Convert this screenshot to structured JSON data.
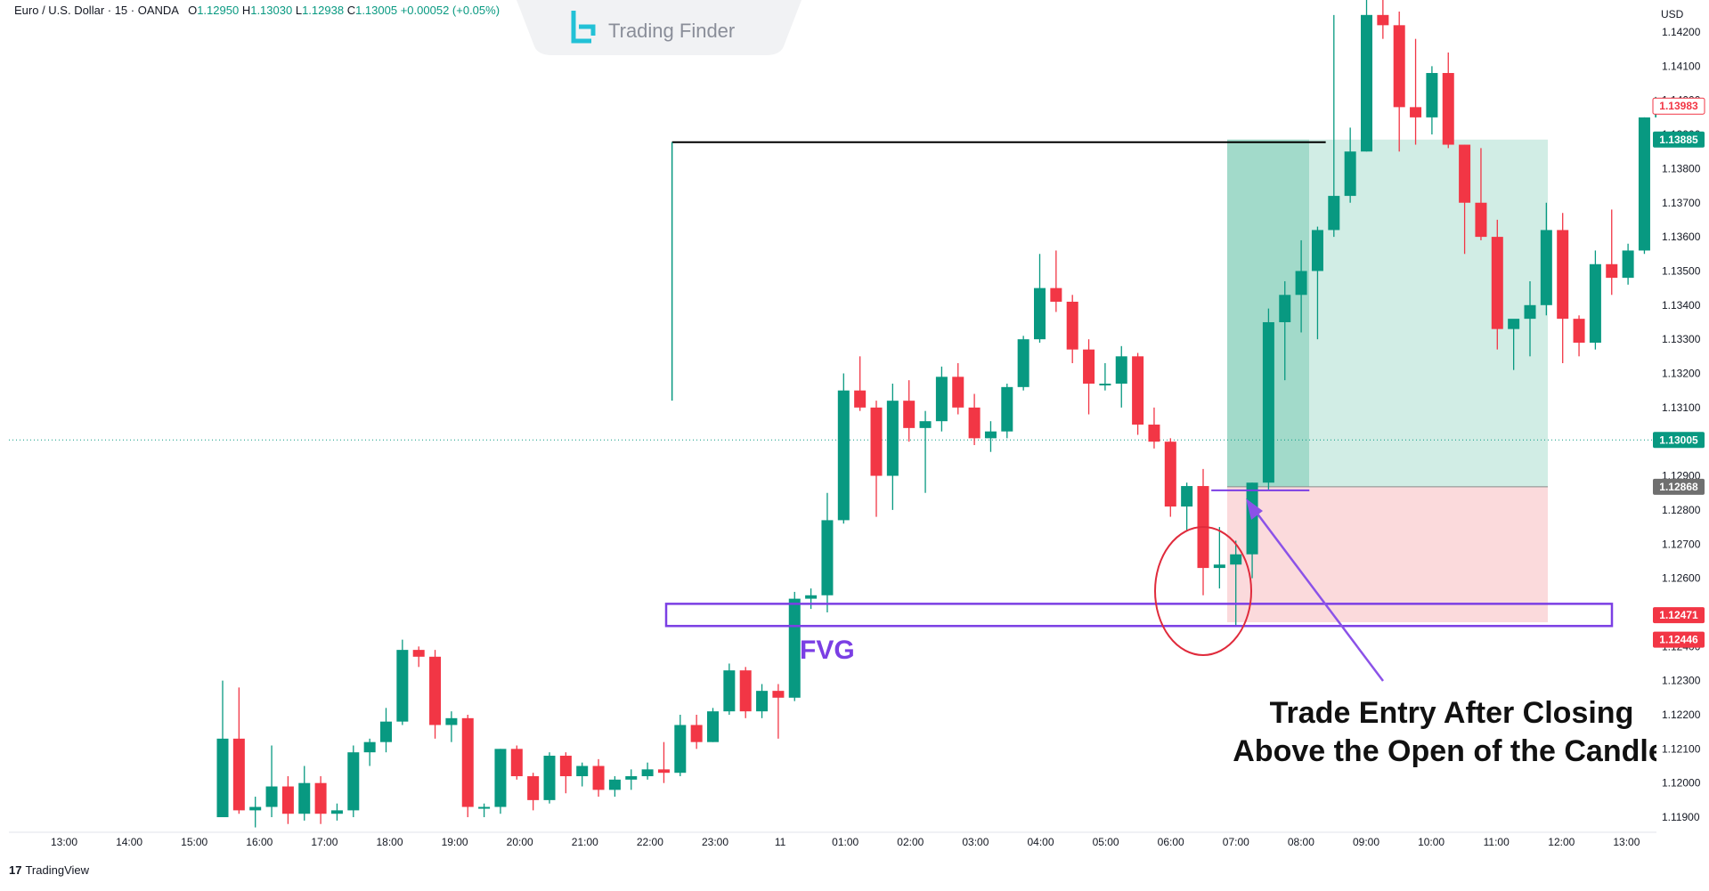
{
  "header": {
    "symbol": "Euro / U.S. Dollar · 15 · OANDA",
    "open_label": "O",
    "open": "1.12950",
    "high_label": "H",
    "high": "1.13030",
    "low_label": "L",
    "low": "1.12938",
    "close_label": "C",
    "close": "1.13005",
    "change": "+0.00052 (+0.05%)"
  },
  "brand": {
    "name": "Trading Finder"
  },
  "footer": {
    "platform": "TradingView",
    "logo_mark": "17"
  },
  "colors": {
    "up": "#089981",
    "down": "#F23645",
    "fvg": "#7B3FE4",
    "target_zone": "#B8E3D7",
    "stop_zone": "#FAD3D6",
    "entry_circle": "#E02B3C",
    "level_line": "#000000",
    "current_price": "#089981"
  },
  "chart_data": {
    "type": "candlestick",
    "symbol": "EURUSD",
    "timeframe": "15",
    "currency": "USD",
    "y_ticks": [
      "1.14200",
      "1.14100",
      "1.14000",
      "1.13900",
      "1.13800",
      "1.13700",
      "1.13600",
      "1.13500",
      "1.13400",
      "1.13300",
      "1.13200",
      "1.13100",
      "1.13000",
      "1.12900",
      "1.12800",
      "1.12700",
      "1.12600",
      "1.12500",
      "1.12400",
      "1.12300",
      "1.12200",
      "1.12100",
      "1.12000",
      "1.11900"
    ],
    "x_ticks": [
      "13:00",
      "14:00",
      "15:00",
      "16:00",
      "17:00",
      "18:00",
      "19:00",
      "20:00",
      "21:00",
      "22:00",
      "23:00",
      "11",
      "01:00",
      "02:00",
      "03:00",
      "04:00",
      "05:00",
      "06:00",
      "07:00",
      "08:00",
      "09:00",
      "10:00",
      "11:00",
      "12:00",
      "13:00"
    ],
    "price_labels": [
      {
        "text": "1.13983",
        "kind": "outline-red"
      },
      {
        "text": "1.13885",
        "kind": "solid-green"
      },
      {
        "text": "1.13005",
        "kind": "solid-green"
      },
      {
        "text": "1.12868",
        "kind": "solid-gray"
      },
      {
        "text": "1.12471",
        "kind": "solid-red"
      },
      {
        "text": "1.12446",
        "kind": "solid-red"
      }
    ],
    "candles": [
      {
        "o": 1.119,
        "h": 1.123,
        "l": 1.119,
        "c": 1.1213
      },
      {
        "o": 1.1213,
        "h": 1.1228,
        "l": 1.1191,
        "c": 1.1192
      },
      {
        "o": 1.1192,
        "h": 1.1196,
        "l": 1.1187,
        "c": 1.1193
      },
      {
        "o": 1.1193,
        "h": 1.1211,
        "l": 1.119,
        "c": 1.1199
      },
      {
        "o": 1.1199,
        "h": 1.1202,
        "l": 1.1188,
        "c": 1.1191
      },
      {
        "o": 1.1191,
        "h": 1.1205,
        "l": 1.1189,
        "c": 1.12
      },
      {
        "o": 1.12,
        "h": 1.1202,
        "l": 1.1188,
        "c": 1.1191
      },
      {
        "o": 1.1191,
        "h": 1.1194,
        "l": 1.1189,
        "c": 1.1192
      },
      {
        "o": 1.1192,
        "h": 1.1211,
        "l": 1.119,
        "c": 1.1209
      },
      {
        "o": 1.1209,
        "h": 1.1213,
        "l": 1.1205,
        "c": 1.1212
      },
      {
        "o": 1.1212,
        "h": 1.1222,
        "l": 1.1209,
        "c": 1.1218
      },
      {
        "o": 1.1218,
        "h": 1.1242,
        "l": 1.1217,
        "c": 1.1239
      },
      {
        "o": 1.1239,
        "h": 1.124,
        "l": 1.1234,
        "c": 1.1237
      },
      {
        "o": 1.1237,
        "h": 1.1239,
        "l": 1.1213,
        "c": 1.1217
      },
      {
        "o": 1.1217,
        "h": 1.1221,
        "l": 1.1212,
        "c": 1.1219
      },
      {
        "o": 1.1219,
        "h": 1.122,
        "l": 1.119,
        "c": 1.1193
      },
      {
        "o": 1.1193,
        "h": 1.1194,
        "l": 1.119,
        "c": 1.1193
      },
      {
        "o": 1.1193,
        "h": 1.121,
        "l": 1.1191,
        "c": 1.121
      },
      {
        "o": 1.121,
        "h": 1.1211,
        "l": 1.1201,
        "c": 1.1202
      },
      {
        "o": 1.1202,
        "h": 1.1203,
        "l": 1.1192,
        "c": 1.1195
      },
      {
        "o": 1.1195,
        "h": 1.1209,
        "l": 1.1194,
        "c": 1.1208
      },
      {
        "o": 1.1208,
        "h": 1.1209,
        "l": 1.1197,
        "c": 1.1202
      },
      {
        "o": 1.1202,
        "h": 1.1206,
        "l": 1.1199,
        "c": 1.1205
      },
      {
        "o": 1.1205,
        "h": 1.1207,
        "l": 1.1196,
        "c": 1.1198
      },
      {
        "o": 1.1198,
        "h": 1.1202,
        "l": 1.1196,
        "c": 1.1201
      },
      {
        "o": 1.1201,
        "h": 1.1204,
        "l": 1.1198,
        "c": 1.1202
      },
      {
        "o": 1.1202,
        "h": 1.1206,
        "l": 1.1201,
        "c": 1.1204
      },
      {
        "o": 1.1204,
        "h": 1.1212,
        "l": 1.12,
        "c": 1.1203
      },
      {
        "o": 1.1203,
        "h": 1.122,
        "l": 1.1202,
        "c": 1.1217
      },
      {
        "o": 1.1217,
        "h": 1.122,
        "l": 1.121,
        "c": 1.1212
      },
      {
        "o": 1.1212,
        "h": 1.1222,
        "l": 1.1212,
        "c": 1.1221
      },
      {
        "o": 1.1221,
        "h": 1.1235,
        "l": 1.122,
        "c": 1.1233
      },
      {
        "o": 1.1233,
        "h": 1.1234,
        "l": 1.1219,
        "c": 1.1221
      },
      {
        "o": 1.1221,
        "h": 1.1229,
        "l": 1.1219,
        "c": 1.1227
      },
      {
        "o": 1.1227,
        "h": 1.1229,
        "l": 1.1213,
        "c": 1.1225
      },
      {
        "o": 1.1225,
        "h": 1.1256,
        "l": 1.1224,
        "c": 1.1254
      },
      {
        "o": 1.1254,
        "h": 1.1257,
        "l": 1.1251,
        "c": 1.1255
      },
      {
        "o": 1.1255,
        "h": 1.1285,
        "l": 1.125,
        "c": 1.1277
      },
      {
        "o": 1.1277,
        "h": 1.132,
        "l": 1.1276,
        "c": 1.1315
      },
      {
        "o": 1.1315,
        "h": 1.1325,
        "l": 1.1309,
        "c": 1.131
      },
      {
        "o": 1.131,
        "h": 1.1312,
        "l": 1.1278,
        "c": 1.129
      },
      {
        "o": 1.129,
        "h": 1.1317,
        "l": 1.128,
        "c": 1.1312
      },
      {
        "o": 1.1312,
        "h": 1.1318,
        "l": 1.13,
        "c": 1.1304
      },
      {
        "o": 1.1304,
        "h": 1.1309,
        "l": 1.1285,
        "c": 1.1306
      },
      {
        "o": 1.1306,
        "h": 1.1322,
        "l": 1.1303,
        "c": 1.1319
      },
      {
        "o": 1.1319,
        "h": 1.1323,
        "l": 1.1308,
        "c": 1.131
      },
      {
        "o": 1.131,
        "h": 1.1314,
        "l": 1.1299,
        "c": 1.1301
      },
      {
        "o": 1.1301,
        "h": 1.1306,
        "l": 1.1297,
        "c": 1.1303
      },
      {
        "o": 1.1303,
        "h": 1.1317,
        "l": 1.1301,
        "c": 1.1316
      },
      {
        "o": 1.1316,
        "h": 1.1331,
        "l": 1.1315,
        "c": 1.133
      },
      {
        "o": 1.133,
        "h": 1.1355,
        "l": 1.1329,
        "c": 1.1345
      },
      {
        "o": 1.1345,
        "h": 1.1356,
        "l": 1.1338,
        "c": 1.1341
      },
      {
        "o": 1.1341,
        "h": 1.1343,
        "l": 1.1323,
        "c": 1.1327
      },
      {
        "o": 1.1327,
        "h": 1.133,
        "l": 1.1308,
        "c": 1.1317
      },
      {
        "o": 1.1317,
        "h": 1.1323,
        "l": 1.1315,
        "c": 1.1317
      },
      {
        "o": 1.1317,
        "h": 1.1328,
        "l": 1.131,
        "c": 1.1325
      },
      {
        "o": 1.1325,
        "h": 1.1326,
        "l": 1.1302,
        "c": 1.1305
      },
      {
        "o": 1.1305,
        "h": 1.131,
        "l": 1.1298,
        "c": 1.13
      },
      {
        "o": 1.13,
        "h": 1.1301,
        "l": 1.1278,
        "c": 1.1281
      },
      {
        "o": 1.1281,
        "h": 1.1288,
        "l": 1.1274,
        "c": 1.1287
      },
      {
        "o": 1.1287,
        "h": 1.1292,
        "l": 1.1255,
        "c": 1.1263
      },
      {
        "o": 1.1263,
        "h": 1.1275,
        "l": 1.1257,
        "c": 1.1264
      },
      {
        "o": 1.1264,
        "h": 1.1271,
        "l": 1.1246,
        "c": 1.1267
      },
      {
        "o": 1.1267,
        "h": 1.1288,
        "l": 1.126,
        "c": 1.1288
      },
      {
        "o": 1.1288,
        "h": 1.1339,
        "l": 1.1286,
        "c": 1.1335
      },
      {
        "o": 1.1335,
        "h": 1.1347,
        "l": 1.1318,
        "c": 1.1343
      },
      {
        "o": 1.1343,
        "h": 1.1359,
        "l": 1.1332,
        "c": 1.135
      },
      {
        "o": 1.135,
        "h": 1.1363,
        "l": 1.133,
        "c": 1.1362
      },
      {
        "o": 1.1362,
        "h": 1.1425,
        "l": 1.136,
        "c": 1.1372
      },
      {
        "o": 1.1372,
        "h": 1.1392,
        "l": 1.137,
        "c": 1.1385
      },
      {
        "o": 1.1385,
        "h": 1.1433,
        "l": 1.1385,
        "c": 1.1425
      },
      {
        "o": 1.1425,
        "h": 1.1435,
        "l": 1.1418,
        "c": 1.1422
      },
      {
        "o": 1.1422,
        "h": 1.1426,
        "l": 1.1385,
        "c": 1.1398
      },
      {
        "o": 1.1398,
        "h": 1.1418,
        "l": 1.1387,
        "c": 1.1395
      },
      {
        "o": 1.1395,
        "h": 1.141,
        "l": 1.139,
        "c": 1.1408
      },
      {
        "o": 1.1408,
        "h": 1.1414,
        "l": 1.1386,
        "c": 1.1387
      },
      {
        "o": 1.1387,
        "h": 1.1387,
        "l": 1.1355,
        "c": 1.137
      },
      {
        "o": 1.137,
        "h": 1.1386,
        "l": 1.1359,
        "c": 1.136
      },
      {
        "o": 1.136,
        "h": 1.1365,
        "l": 1.1327,
        "c": 1.1333
      },
      {
        "o": 1.1333,
        "h": 1.1335,
        "l": 1.1321,
        "c": 1.1336
      },
      {
        "o": 1.1336,
        "h": 1.1347,
        "l": 1.1325,
        "c": 1.134
      },
      {
        "o": 1.134,
        "h": 1.137,
        "l": 1.1337,
        "c": 1.1362
      },
      {
        "o": 1.1362,
        "h": 1.1367,
        "l": 1.1323,
        "c": 1.1336
      },
      {
        "o": 1.1336,
        "h": 1.1337,
        "l": 1.1325,
        "c": 1.1329
      },
      {
        "o": 1.1329,
        "h": 1.1356,
        "l": 1.1327,
        "c": 1.1352
      },
      {
        "o": 1.1352,
        "h": 1.1368,
        "l": 1.1343,
        "c": 1.1348
      },
      {
        "o": 1.1348,
        "h": 1.1358,
        "l": 1.1346,
        "c": 1.1356
      },
      {
        "o": 1.1356,
        "h": 1.1395,
        "l": 1.1355,
        "c": 1.1395
      },
      {
        "o": 1.1395,
        "h": 1.1412,
        "l": 1.1394,
        "c": 1.1401
      },
      {
        "o": 1.1401,
        "h": 1.1412,
        "l": 1.1389,
        "c": 1.13983
      }
    ],
    "annotations": {
      "swing_high_level": 1.13885,
      "fvg_top": 1.12525,
      "fvg_bottom": 1.1246,
      "fvg_label": "FVG",
      "entry_price": 1.12868,
      "target_price": 1.13885,
      "stop_price": 1.12471,
      "note_line1": "Trade Entry After Closing",
      "note_line2": "Above the Open of the Candle"
    },
    "current_price": 1.13005,
    "grid": false,
    "legend": "none"
  }
}
